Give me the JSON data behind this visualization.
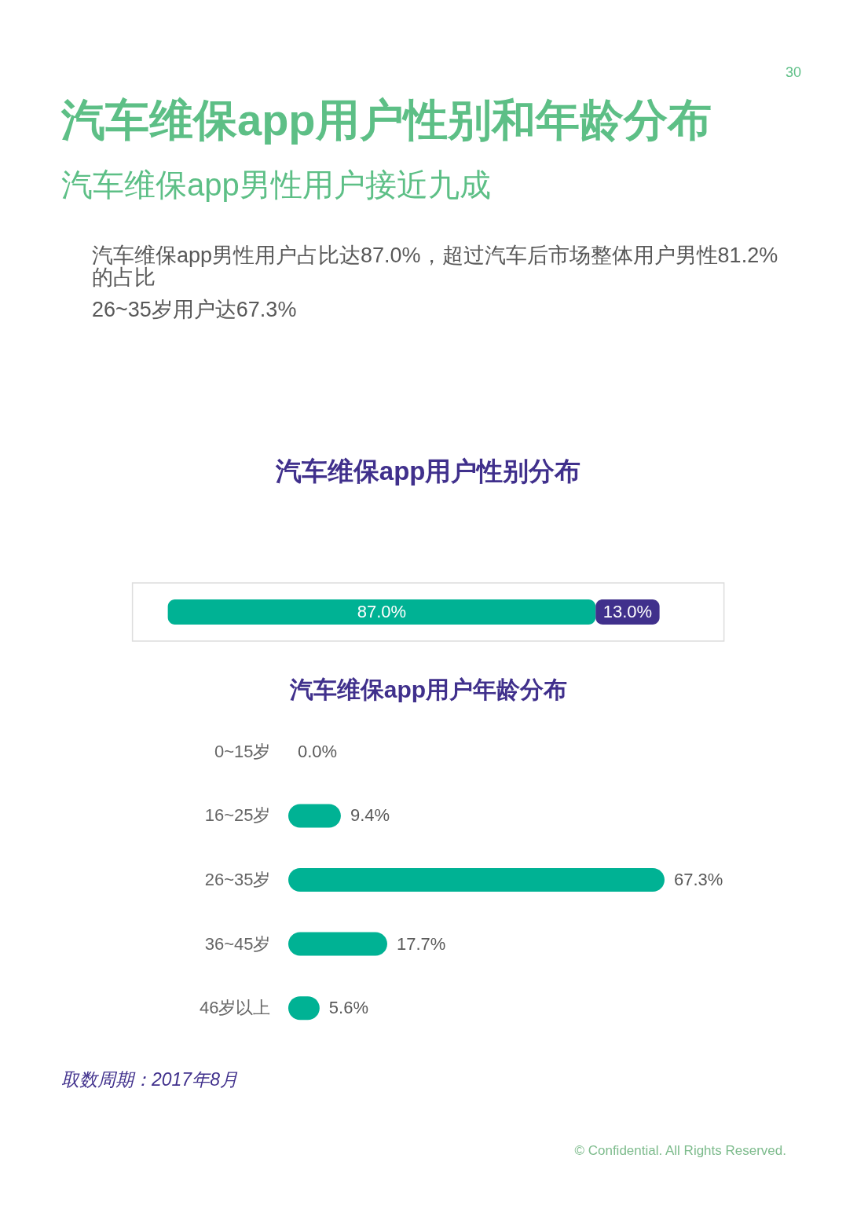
{
  "chart_data": [
    {
      "type": "other",
      "title": "汽车维保app用户性别和年龄分布",
      "subtitle": "汽车维保app男性用户接近九成",
      "annotations": [
        "30",
        "汽车维保app男性用户占比达87.0%，超过汽车后市场整体用户男性81.2%的占比",
        "26~35岁用户达67.3%"
      ]
    },
    {
      "type": "bar",
      "title": "汽车维保app用户性别分布",
      "orientation": "horizontal",
      "stacked": true,
      "categories": [
        null
      ],
      "series": [
        {
          "color": "#00b294",
          "values": [
            87.0
          ],
          "value_labels": [
            "87.0%"
          ]
        },
        {
          "color": "#40308c",
          "values": [
            13.0
          ],
          "value_labels": [
            "13.0%"
          ]
        }
      ]
    },
    {
      "type": "bar",
      "title": "汽车维保app用户年龄分布",
      "orientation": "horizontal",
      "categories": [
        "0~15岁",
        "16~25岁",
        "26~35岁",
        "36~45岁",
        "46岁以上"
      ],
      "values": [
        0.0,
        9.4,
        67.3,
        17.7,
        5.6
      ],
      "color": "#00b294",
      "value_labels": [
        "0.0%",
        "9.4%",
        "67.3%",
        "17.7%",
        "5.6%"
      ],
      "annotations": [
        "取数周期：2017年8月",
        "© Confidential. All Rights Reserved."
      ]
    }
  ]
}
